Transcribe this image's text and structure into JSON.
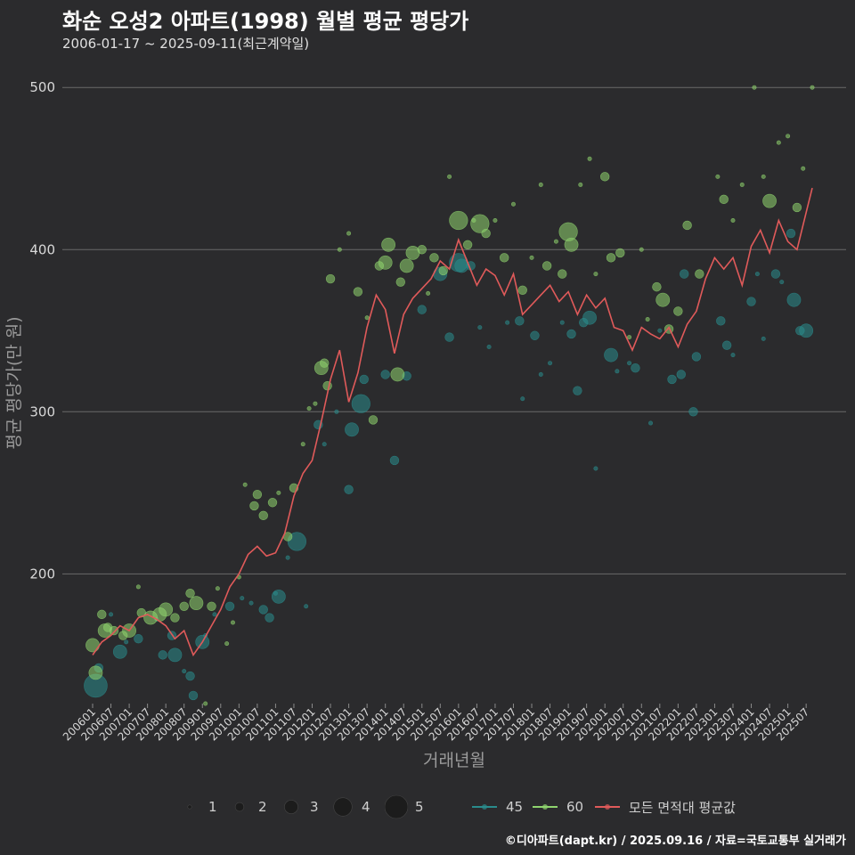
{
  "header": {
    "title": "화순 오성2 아파트(1998) 월별 평균 평당가",
    "subtitle": "2006-01-17 ~ 2025-09-11(최근계약일)"
  },
  "credit": "©디아파트(dapt.kr) / 2025.09.16 / 자료=국토교통부 실거래가",
  "legend": {
    "size_items": [
      {
        "label": "1",
        "value": 1
      },
      {
        "label": "2",
        "value": 2
      },
      {
        "label": "3",
        "value": 3
      },
      {
        "label": "4",
        "value": 4
      },
      {
        "label": "5",
        "value": 5
      }
    ],
    "series_items": [
      {
        "label": "45",
        "color": "#2a8c8c"
      },
      {
        "label": "60",
        "color": "#8fd46e"
      },
      {
        "label": "모든 면적대 평균값",
        "color": "#e05a5a"
      }
    ]
  },
  "chart_data": {
    "type": "scatter",
    "xlabel": "거래년월",
    "ylabel": "평균 평당가(만 원)",
    "x_start": "2006-01",
    "x_end": "2025-09",
    "xticks": [
      "200601",
      "200607",
      "200701",
      "200707",
      "200801",
      "200807",
      "200901",
      "200907",
      "201001",
      "201007",
      "201101",
      "201107",
      "201201",
      "201207",
      "201301",
      "201307",
      "201401",
      "201407",
      "201501",
      "201507",
      "201601",
      "201607",
      "201701",
      "201707",
      "201801",
      "201807",
      "201901",
      "201907",
      "202001",
      "202007",
      "202101",
      "202107",
      "202201",
      "202207",
      "202301",
      "202307",
      "202401",
      "202407",
      "202501",
      "202507"
    ],
    "ylim": [
      120,
      510
    ],
    "yticks": [
      200,
      300,
      400,
      500
    ],
    "grid": "horizontal",
    "legend_position": "bottom",
    "series": [
      {
        "name": "45",
        "color": "#2a8c8c",
        "points": [
          [
            "2006-02",
            131,
            5
          ],
          [
            "2006-03",
            142,
            2
          ],
          [
            "2006-07",
            175,
            1
          ],
          [
            "2006-10",
            152,
            3
          ],
          [
            "2006-12",
            158,
            1
          ],
          [
            "2007-04",
            160,
            2
          ],
          [
            "2007-10",
            172,
            1
          ],
          [
            "2007-12",
            150,
            2
          ],
          [
            "2008-03",
            162,
            2
          ],
          [
            "2008-04",
            150,
            3
          ],
          [
            "2008-07",
            140,
            1
          ],
          [
            "2008-09",
            137,
            2
          ],
          [
            "2008-10",
            125,
            2
          ],
          [
            "2009-01",
            158,
            3
          ],
          [
            "2009-02",
            162,
            1
          ],
          [
            "2009-05",
            175,
            1
          ],
          [
            "2009-10",
            180,
            2
          ],
          [
            "2010-02",
            185,
            1
          ],
          [
            "2010-05",
            182,
            1
          ],
          [
            "2010-09",
            178,
            2
          ],
          [
            "2010-11",
            173,
            2
          ],
          [
            "2011-01",
            188,
            1
          ],
          [
            "2011-02",
            186,
            3
          ],
          [
            "2011-05",
            210,
            1
          ],
          [
            "2011-08",
            220,
            4
          ],
          [
            "2011-11",
            180,
            1
          ],
          [
            "2012-03",
            292,
            2
          ],
          [
            "2012-05",
            280,
            1
          ],
          [
            "2012-09",
            300,
            1
          ],
          [
            "2013-01",
            252,
            2
          ],
          [
            "2013-02",
            289,
            3
          ],
          [
            "2013-05",
            305,
            4
          ],
          [
            "2013-06",
            320,
            2
          ],
          [
            "2014-01",
            323,
            2
          ],
          [
            "2014-04",
            270,
            2
          ],
          [
            "2014-08",
            322,
            2
          ],
          [
            "2015-01",
            363,
            2
          ],
          [
            "2015-07",
            385,
            3
          ],
          [
            "2015-10",
            346,
            2
          ],
          [
            "2016-01",
            392,
            4
          ],
          [
            "2016-02",
            390,
            3
          ],
          [
            "2016-05",
            390,
            2
          ],
          [
            "2016-08",
            352,
            1
          ],
          [
            "2016-11",
            340,
            1
          ],
          [
            "2017-05",
            355,
            1
          ],
          [
            "2017-09",
            356,
            2
          ],
          [
            "2017-10",
            308,
            1
          ],
          [
            "2018-02",
            347,
            2
          ],
          [
            "2018-04",
            323,
            1
          ],
          [
            "2018-07",
            330,
            1
          ],
          [
            "2018-11",
            355,
            1
          ],
          [
            "2019-02",
            348,
            2
          ],
          [
            "2019-04",
            313,
            2
          ],
          [
            "2019-06",
            355,
            2
          ],
          [
            "2019-08",
            358,
            3
          ],
          [
            "2019-10",
            265,
            1
          ],
          [
            "2020-03",
            335,
            3
          ],
          [
            "2020-05",
            325,
            1
          ],
          [
            "2020-09",
            330,
            1
          ],
          [
            "2020-11",
            327,
            2
          ],
          [
            "2021-04",
            293,
            1
          ],
          [
            "2021-07",
            350,
            1
          ],
          [
            "2021-11",
            320,
            2
          ],
          [
            "2022-02",
            323,
            2
          ],
          [
            "2022-03",
            385,
            2
          ],
          [
            "2022-06",
            300,
            2
          ],
          [
            "2022-07",
            334,
            2
          ],
          [
            "2023-03",
            356,
            2
          ],
          [
            "2023-05",
            341,
            2
          ],
          [
            "2023-07",
            335,
            1
          ],
          [
            "2024-01",
            368,
            2
          ],
          [
            "2024-03",
            385,
            1
          ],
          [
            "2024-05",
            345,
            1
          ],
          [
            "2024-09",
            385,
            2
          ],
          [
            "2024-11",
            380,
            1
          ],
          [
            "2025-02",
            410,
            2
          ],
          [
            "2025-03",
            369,
            3
          ],
          [
            "2025-05",
            350,
            2
          ],
          [
            "2025-07",
            350,
            3
          ]
        ]
      },
      {
        "name": "60",
        "color": "#8fd46e",
        "points": [
          [
            "2006-01",
            156,
            3
          ],
          [
            "2006-02",
            139,
            3
          ],
          [
            "2006-04",
            175,
            2
          ],
          [
            "2006-05",
            165,
            3
          ],
          [
            "2006-06",
            167,
            2
          ],
          [
            "2006-08",
            165,
            2
          ],
          [
            "2006-11",
            162,
            2
          ],
          [
            "2007-01",
            165,
            3
          ],
          [
            "2007-04",
            192,
            1
          ],
          [
            "2007-05",
            176,
            2
          ],
          [
            "2007-08",
            173,
            3
          ],
          [
            "2007-11",
            175,
            3
          ],
          [
            "2008-01",
            178,
            3
          ],
          [
            "2008-04",
            173,
            2
          ],
          [
            "2008-07",
            180,
            2
          ],
          [
            "2008-09",
            188,
            2
          ],
          [
            "2008-11",
            182,
            3
          ],
          [
            "2009-02",
            120,
            1
          ],
          [
            "2009-04",
            180,
            2
          ],
          [
            "2009-06",
            191,
            1
          ],
          [
            "2009-09",
            157,
            1
          ],
          [
            "2009-11",
            170,
            1
          ],
          [
            "2010-01",
            198,
            1
          ],
          [
            "2010-03",
            255,
            1
          ],
          [
            "2010-06",
            242,
            2
          ],
          [
            "2010-07",
            249,
            2
          ],
          [
            "2010-09",
            236,
            2
          ],
          [
            "2010-12",
            244,
            2
          ],
          [
            "2011-02",
            250,
            1
          ],
          [
            "2011-05",
            223,
            2
          ],
          [
            "2011-07",
            253,
            2
          ],
          [
            "2011-10",
            280,
            1
          ],
          [
            "2011-12",
            302,
            1
          ],
          [
            "2012-02",
            305,
            1
          ],
          [
            "2012-04",
            327,
            3
          ],
          [
            "2012-05",
            330,
            2
          ],
          [
            "2012-06",
            316,
            2
          ],
          [
            "2012-07",
            382,
            2
          ],
          [
            "2012-10",
            400,
            1
          ],
          [
            "2013-01",
            410,
            1
          ],
          [
            "2013-04",
            374,
            2
          ],
          [
            "2013-07",
            358,
            1
          ],
          [
            "2013-09",
            295,
            2
          ],
          [
            "2013-11",
            390,
            2
          ],
          [
            "2014-01",
            392,
            3
          ],
          [
            "2014-02",
            403,
            3
          ],
          [
            "2014-05",
            323,
            3
          ],
          [
            "2014-06",
            380,
            2
          ],
          [
            "2014-08",
            390,
            3
          ],
          [
            "2014-10",
            398,
            3
          ],
          [
            "2015-01",
            400,
            2
          ],
          [
            "2015-03",
            373,
            1
          ],
          [
            "2015-05",
            395,
            2
          ],
          [
            "2015-08",
            387,
            2
          ],
          [
            "2015-10",
            445,
            1
          ],
          [
            "2016-01",
            418,
            4
          ],
          [
            "2016-04",
            403,
            2
          ],
          [
            "2016-06",
            418,
            1
          ],
          [
            "2016-08",
            416,
            4
          ],
          [
            "2016-10",
            410,
            2
          ],
          [
            "2017-01",
            418,
            1
          ],
          [
            "2017-04",
            395,
            2
          ],
          [
            "2017-07",
            428,
            1
          ],
          [
            "2017-10",
            375,
            2
          ],
          [
            "2018-01",
            395,
            1
          ],
          [
            "2018-04",
            440,
            1
          ],
          [
            "2018-06",
            390,
            2
          ],
          [
            "2018-09",
            405,
            1
          ],
          [
            "2018-11",
            385,
            2
          ],
          [
            "2019-01",
            411,
            4
          ],
          [
            "2019-02",
            403,
            3
          ],
          [
            "2019-05",
            440,
            1
          ],
          [
            "2019-08",
            456,
            1
          ],
          [
            "2019-10",
            385,
            1
          ],
          [
            "2020-01",
            445,
            2
          ],
          [
            "2020-03",
            395,
            2
          ],
          [
            "2020-06",
            398,
            2
          ],
          [
            "2020-09",
            346,
            1
          ],
          [
            "2021-01",
            400,
            1
          ],
          [
            "2021-03",
            357,
            1
          ],
          [
            "2021-06",
            377,
            2
          ],
          [
            "2021-08",
            369,
            3
          ],
          [
            "2021-10",
            351,
            2
          ],
          [
            "2022-01",
            362,
            2
          ],
          [
            "2022-04",
            415,
            2
          ],
          [
            "2022-08",
            385,
            2
          ],
          [
            "2023-02",
            445,
            1
          ],
          [
            "2023-04",
            431,
            2
          ],
          [
            "2023-07",
            418,
            1
          ],
          [
            "2023-10",
            440,
            1
          ],
          [
            "2024-02",
            500,
            1
          ],
          [
            "2024-05",
            445,
            1
          ],
          [
            "2024-07",
            430,
            3
          ],
          [
            "2024-10",
            466,
            1
          ],
          [
            "2025-01",
            470,
            1
          ],
          [
            "2025-04",
            426,
            2
          ],
          [
            "2025-06",
            450,
            1
          ],
          [
            "2025-09",
            500,
            1
          ]
        ]
      }
    ],
    "avg_series": {
      "name": "모든 면적대 평균값",
      "color": "#e05a5a",
      "x": [
        "2006-01",
        "2006-04",
        "2006-07",
        "2006-10",
        "2007-01",
        "2007-04",
        "2007-07",
        "2007-10",
        "2008-01",
        "2008-04",
        "2008-07",
        "2008-10",
        "2009-01",
        "2009-04",
        "2009-07",
        "2009-10",
        "2010-01",
        "2010-04",
        "2010-07",
        "2010-10",
        "2011-01",
        "2011-04",
        "2011-07",
        "2011-10",
        "2012-01",
        "2012-04",
        "2012-07",
        "2012-10",
        "2013-01",
        "2013-04",
        "2013-07",
        "2013-10",
        "2014-01",
        "2014-04",
        "2014-07",
        "2014-10",
        "2015-01",
        "2015-04",
        "2015-07",
        "2015-10",
        "2016-01",
        "2016-04",
        "2016-07",
        "2016-10",
        "2017-01",
        "2017-04",
        "2017-07",
        "2017-10",
        "2018-01",
        "2018-04",
        "2018-07",
        "2018-10",
        "2019-01",
        "2019-04",
        "2019-07",
        "2019-10",
        "2020-01",
        "2020-04",
        "2020-07",
        "2020-10",
        "2021-01",
        "2021-04",
        "2021-07",
        "2021-10",
        "2022-01",
        "2022-04",
        "2022-07",
        "2022-10",
        "2023-01",
        "2023-04",
        "2023-07",
        "2023-10",
        "2024-01",
        "2024-04",
        "2024-07",
        "2024-10",
        "2025-01",
        "2025-04",
        "2025-07",
        "2025-09"
      ],
      "values": [
        150,
        158,
        162,
        168,
        165,
        173,
        175,
        172,
        168,
        160,
        165,
        150,
        158,
        168,
        178,
        192,
        200,
        212,
        217,
        211,
        213,
        225,
        248,
        262,
        270,
        294,
        320,
        338,
        306,
        324,
        352,
        372,
        363,
        336,
        360,
        370,
        376,
        382,
        393,
        388,
        406,
        392,
        378,
        388,
        384,
        372,
        385,
        360,
        366,
        372,
        378,
        368,
        374,
        360,
        372,
        364,
        370,
        352,
        350,
        338,
        352,
        348,
        345,
        352,
        340,
        354,
        362,
        382,
        395,
        388,
        395,
        378,
        402,
        412,
        398,
        418,
        405,
        400,
        423,
        438
      ]
    }
  }
}
